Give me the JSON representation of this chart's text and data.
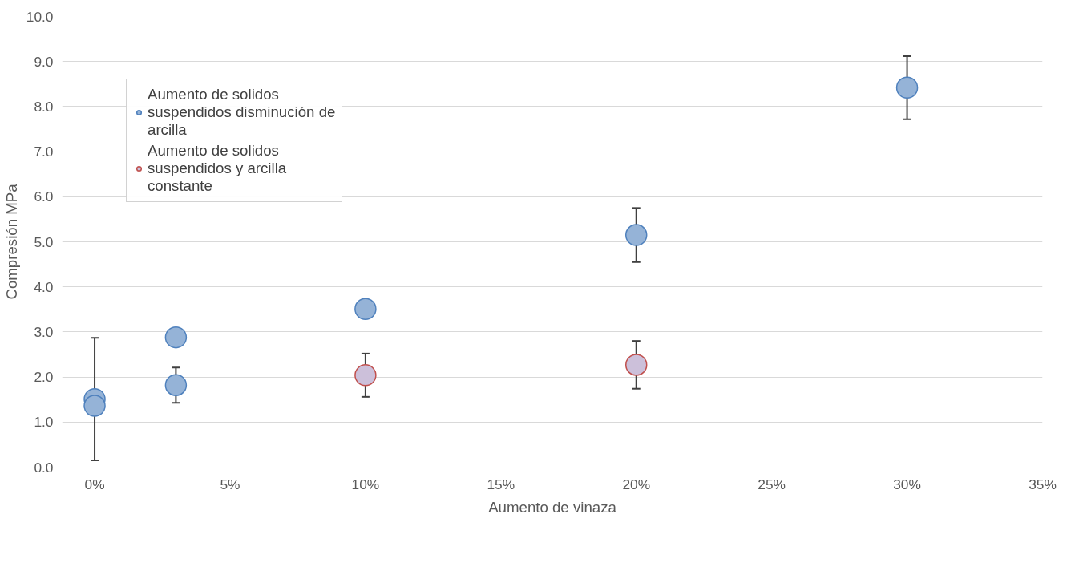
{
  "chart_data": {
    "type": "scatter",
    "xlabel": "Aumento de vinaza",
    "ylabel": "Compresión MPa",
    "xlim": [
      -0.012,
      0.35
    ],
    "xticks": [
      {
        "value": 0,
        "label": "0%"
      },
      {
        "value": 0.05,
        "label": "5%"
      },
      {
        "value": 0.1,
        "label": "10%"
      },
      {
        "value": 0.15,
        "label": "15%"
      },
      {
        "value": 0.2,
        "label": "20%"
      },
      {
        "value": 0.25,
        "label": "25%"
      },
      {
        "value": 0.3,
        "label": "30%"
      },
      {
        "value": 0.35,
        "label": "35%"
      }
    ],
    "ylim": [
      0,
      10
    ],
    "yticks": [
      {
        "value": 0,
        "label": "0.0"
      },
      {
        "value": 1,
        "label": "1.0"
      },
      {
        "value": 2,
        "label": "2.0"
      },
      {
        "value": 3,
        "label": "3.0"
      },
      {
        "value": 4,
        "label": "4.0"
      },
      {
        "value": 5,
        "label": "5.0"
      },
      {
        "value": 6,
        "label": "6.0"
      },
      {
        "value": 7,
        "label": "7.0"
      },
      {
        "value": 8,
        "label": "8.0"
      },
      {
        "value": 9,
        "label": "9.0"
      },
      {
        "value": 10,
        "label": "10.0"
      }
    ],
    "grid": "y",
    "legend": "top left",
    "marker": "circle",
    "series": [
      {
        "name": "Aumento de solidos suspendidos disminución de arcilla",
        "color": "#95b3d7",
        "x": [
          0,
          0,
          0.03,
          0.03,
          0.1,
          0.2,
          0.3
        ],
        "values": [
          1.51,
          1.36,
          2.88,
          1.82,
          3.51,
          5.15,
          8.42
        ],
        "errors": [
          1.36,
          null,
          null,
          0.39,
          null,
          0.6,
          0.7
        ]
      },
      {
        "name": "Aumento de solidos suspendidos y arcilla constante",
        "color": "#ccc0da",
        "x": [
          0.1,
          0.2
        ],
        "values": [
          2.04,
          2.27
        ],
        "errors": [
          0.48,
          0.53
        ]
      }
    ]
  }
}
